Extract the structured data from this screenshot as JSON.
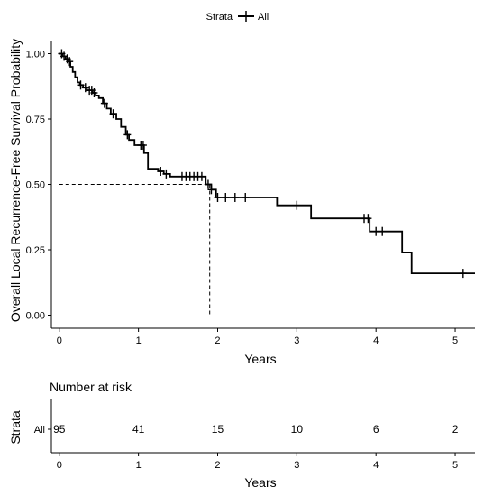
{
  "chart_data": {
    "type": "line",
    "subtype": "kaplan-meier",
    "legend": {
      "title": "Strata",
      "entries": [
        "All"
      ],
      "placement": "top"
    },
    "ylabel": "Overall Local Recurrence-Free Survival Probability",
    "xlabel": "Years",
    "xlim": [
      -0.1,
      5.25
    ],
    "ylim": [
      -0.05,
      1.05
    ],
    "x_ticks": [
      0,
      1,
      2,
      3,
      4,
      5
    ],
    "y_ticks": [
      0.0,
      0.25,
      0.5,
      0.75,
      1.0
    ],
    "y_tick_labels": [
      "0.00",
      "0.25",
      "0.50",
      "0.75",
      "1.00"
    ],
    "grid": false,
    "median": {
      "x": 1.9,
      "y": 0.5
    },
    "series": [
      {
        "name": "All",
        "color": "#000000",
        "steps": [
          [
            0.0,
            1.0
          ],
          [
            0.04,
            0.99
          ],
          [
            0.08,
            0.98
          ],
          [
            0.11,
            0.97
          ],
          [
            0.14,
            0.95
          ],
          [
            0.17,
            0.93
          ],
          [
            0.2,
            0.91
          ],
          [
            0.23,
            0.89
          ],
          [
            0.26,
            0.88
          ],
          [
            0.3,
            0.87
          ],
          [
            0.35,
            0.86
          ],
          [
            0.42,
            0.85
          ],
          [
            0.46,
            0.84
          ],
          [
            0.5,
            0.83
          ],
          [
            0.55,
            0.81
          ],
          [
            0.6,
            0.79
          ],
          [
            0.65,
            0.77
          ],
          [
            0.72,
            0.75
          ],
          [
            0.78,
            0.72
          ],
          [
            0.84,
            0.69
          ],
          [
            0.88,
            0.67
          ],
          [
            0.95,
            0.65
          ],
          [
            1.07,
            0.62
          ],
          [
            1.12,
            0.56
          ],
          [
            1.25,
            0.55
          ],
          [
            1.32,
            0.54
          ],
          [
            1.4,
            0.53
          ],
          [
            1.85,
            0.5
          ],
          [
            1.92,
            0.48
          ],
          [
            1.98,
            0.45
          ],
          [
            2.75,
            0.42
          ],
          [
            3.18,
            0.37
          ],
          [
            3.92,
            0.32
          ],
          [
            4.33,
            0.24
          ],
          [
            4.45,
            0.16
          ],
          [
            5.25,
            0.16
          ]
        ],
        "censor": [
          0.03,
          0.06,
          0.1,
          0.13,
          0.27,
          0.33,
          0.38,
          0.41,
          0.44,
          0.57,
          0.68,
          0.86,
          1.03,
          1.06,
          1.28,
          1.35,
          1.55,
          1.6,
          1.65,
          1.7,
          1.75,
          1.8,
          1.88,
          1.92,
          2.0,
          2.1,
          2.22,
          2.35,
          3.0,
          3.85,
          3.9,
          4.0,
          4.08,
          5.1
        ]
      }
    ]
  },
  "risk_table": {
    "title": "Number at risk",
    "ylabel": "Strata",
    "xlabel": "Years",
    "row_label": "All",
    "times": [
      0,
      1,
      2,
      3,
      4,
      5
    ],
    "counts": [
      "95",
      "41",
      "15",
      "10",
      "6",
      "2"
    ]
  }
}
